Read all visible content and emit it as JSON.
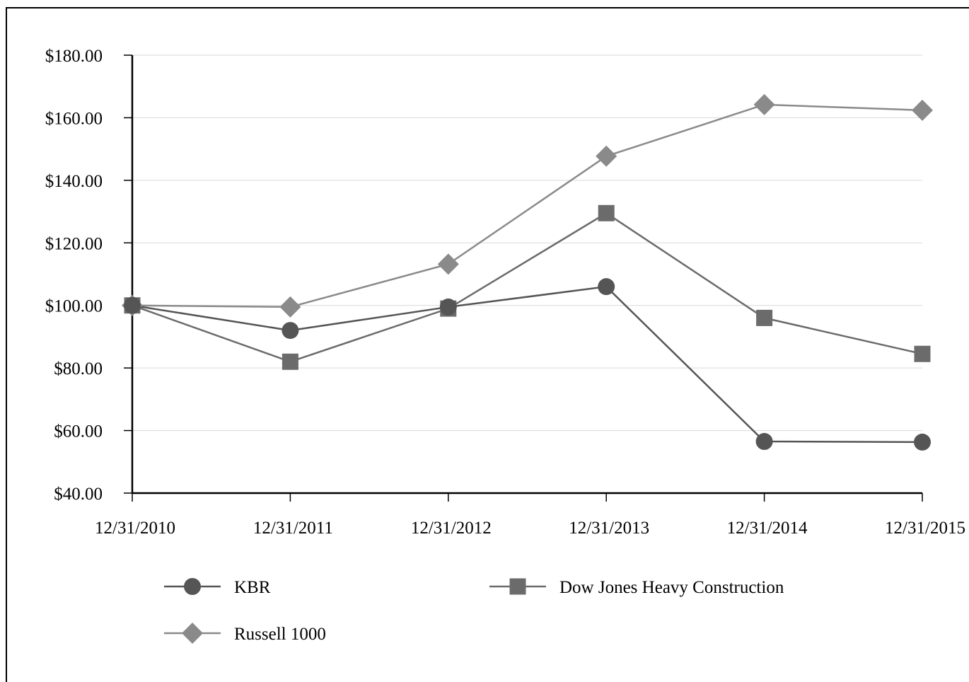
{
  "chart_data": {
    "type": "line",
    "title": "",
    "xlabel": "",
    "ylabel": "",
    "categories": [
      "12/31/2010",
      "12/31/2011",
      "12/31/2012",
      "12/31/2013",
      "12/31/2014",
      "12/31/2015"
    ],
    "ylim": [
      40,
      180
    ],
    "yticks": [
      40,
      60,
      80,
      100,
      120,
      140,
      160,
      180
    ],
    "ytick_labels": [
      "$40.00",
      "$60.00",
      "$80.00",
      "$100.00",
      "$120.00",
      "$140.00",
      "$160.00",
      "$180.00"
    ],
    "grid": true,
    "legend_position": "bottom",
    "series": [
      {
        "name": "KBR",
        "marker": "circle",
        "color": "#555555",
        "values": [
          100.0,
          92.0,
          99.5,
          106.0,
          56.5,
          56.3
        ]
      },
      {
        "name": "Dow Jones Heavy Construction",
        "marker": "square",
        "color": "#6b6b6b",
        "values": [
          100.0,
          82.0,
          99.0,
          129.5,
          96.0,
          84.5
        ]
      },
      {
        "name": "Russell 1000",
        "marker": "diamond",
        "color": "#8a8a8a",
        "values": [
          100.0,
          99.5,
          113.2,
          147.7,
          164.2,
          162.4
        ]
      }
    ]
  }
}
